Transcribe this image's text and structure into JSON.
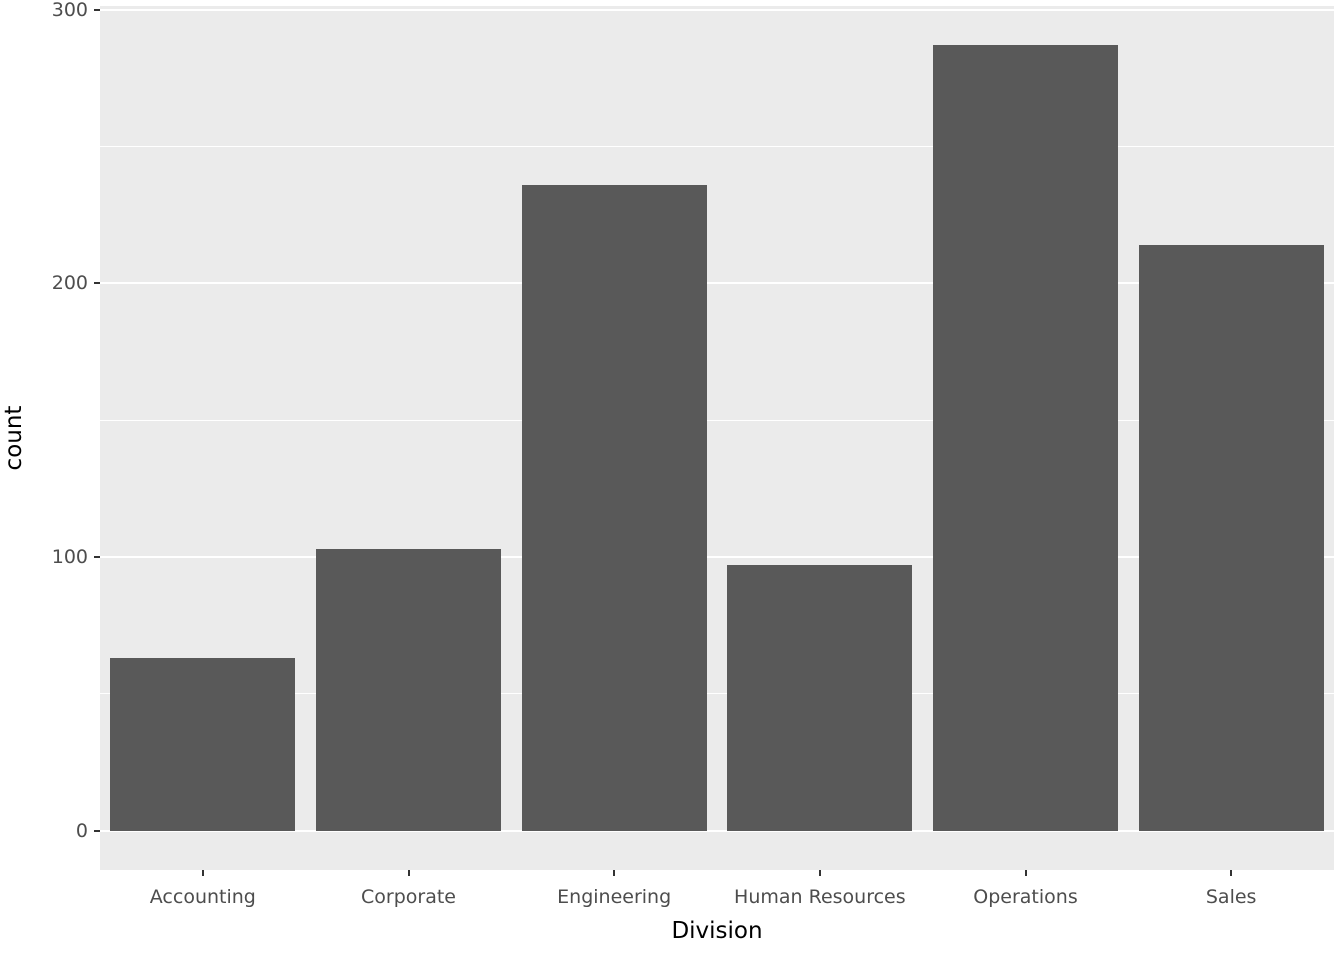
{
  "chart_data": {
    "type": "bar",
    "title": "",
    "xlabel": "Division",
    "ylabel": "count",
    "categories": [
      "Accounting",
      "Corporate",
      "Engineering",
      "Human Resources",
      "Operations",
      "Sales"
    ],
    "values": [
      63,
      103,
      236,
      97,
      287,
      214
    ],
    "yticks": [
      0,
      100,
      200,
      300
    ],
    "yminor": [
      50,
      150,
      250
    ],
    "ylim": [
      -14.35,
      301.35
    ],
    "grid": "on",
    "legend": "none",
    "bar_color": "#595959",
    "panel_background": "#EBEBEB",
    "gridline_color": "#FFFFFF",
    "tick_label_color": "#4D4D4D",
    "axis_title_color": "#000000"
  }
}
